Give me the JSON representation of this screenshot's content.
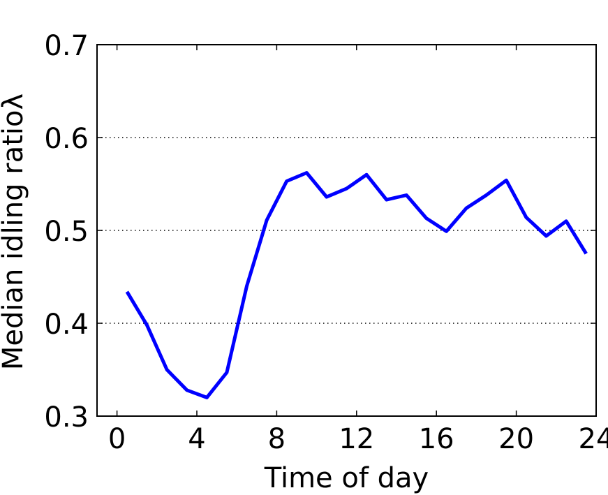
{
  "chart_data": {
    "type": "line",
    "title": "",
    "xlabel": "Time of day",
    "ylabel": "Median idling ratioλ",
    "xlim": [
      -1,
      24
    ],
    "ylim": [
      0.3,
      0.7
    ],
    "xticks": [
      0,
      4,
      8,
      12,
      16,
      20,
      24
    ],
    "xtick_labels": [
      "0",
      "4",
      "8",
      "12",
      "16",
      "20",
      "24"
    ],
    "yticks": [
      0.3,
      0.4,
      0.5,
      0.6,
      0.7
    ],
    "ytick_labels": [
      "0.3",
      "0.4",
      "0.5",
      "0.6",
      "0.7"
    ],
    "grid": "horizontal dotted",
    "series": [
      {
        "color": "#0000ff",
        "x": [
          0.5,
          1.5,
          2.5,
          3.5,
          4.5,
          5.5,
          6.5,
          7.5,
          8.5,
          9.5,
          10.5,
          11.5,
          12.5,
          13.5,
          14.5,
          15.5,
          16.5,
          17.5,
          18.5,
          19.5,
          20.5,
          21.5,
          22.5,
          23.5
        ],
        "values": [
          0.434,
          0.398,
          0.35,
          0.328,
          0.32,
          0.347,
          0.44,
          0.511,
          0.553,
          0.562,
          0.536,
          0.545,
          0.56,
          0.533,
          0.538,
          0.513,
          0.499,
          0.524,
          0.538,
          0.554,
          0.514,
          0.494,
          0.51,
          0.475
        ]
      }
    ]
  }
}
